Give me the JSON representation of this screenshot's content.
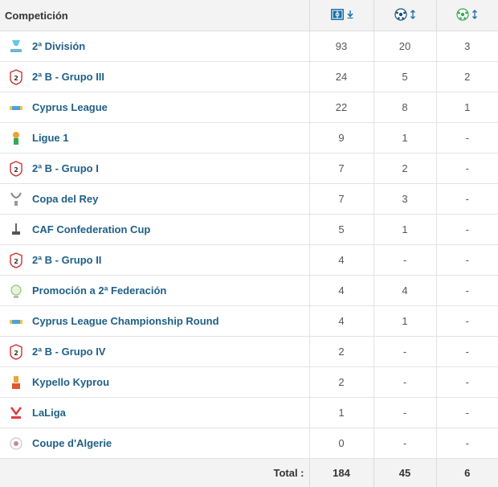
{
  "header": {
    "competition_label": "Competición",
    "col_icons": [
      {
        "icon": "lineup-sort-icon",
        "arrow": "sort-desc-arrow-icon"
      },
      {
        "icon": "ball-icon",
        "arrow": "sort-both-arrow-icon"
      },
      {
        "icon": "assist-ball-icon",
        "arrow": "sort-both-arrow-icon"
      }
    ]
  },
  "rows": [
    {
      "name": "2ª División",
      "logo": "laliga-hypermotion-logo",
      "a": "93",
      "b": "20",
      "c": "3"
    },
    {
      "name": "2ª B - Grupo III",
      "logo": "segunda-b-logo",
      "a": "24",
      "b": "5",
      "c": "2"
    },
    {
      "name": "Cyprus League",
      "logo": "cyprus-league-logo",
      "a": "22",
      "b": "8",
      "c": "1"
    },
    {
      "name": "Ligue 1",
      "logo": "ligue-1-logo",
      "a": "9",
      "b": "1",
      "c": "-"
    },
    {
      "name": "2ª B - Grupo I",
      "logo": "segunda-b-logo",
      "a": "7",
      "b": "2",
      "c": "-"
    },
    {
      "name": "Copa del Rey",
      "logo": "copa-del-rey-logo",
      "a": "7",
      "b": "3",
      "c": "-"
    },
    {
      "name": "CAF Confederation Cup",
      "logo": "caf-cup-logo",
      "a": "5",
      "b": "1",
      "c": "-"
    },
    {
      "name": "2ª B - Grupo II",
      "logo": "segunda-b-logo",
      "a": "4",
      "b": "-",
      "c": "-"
    },
    {
      "name": "Promoción a 2ª Federación",
      "logo": "federacion-logo",
      "a": "4",
      "b": "4",
      "c": "-"
    },
    {
      "name": "Cyprus League Championship Round",
      "logo": "cyprus-league-logo",
      "a": "4",
      "b": "1",
      "c": "-"
    },
    {
      "name": "2ª B - Grupo IV",
      "logo": "segunda-b-logo",
      "a": "2",
      "b": "-",
      "c": "-"
    },
    {
      "name": "Kypello Kyprou",
      "logo": "kypello-kyprou-logo",
      "a": "2",
      "b": "-",
      "c": "-"
    },
    {
      "name": "LaLiga",
      "logo": "laliga-logo",
      "a": "1",
      "b": "-",
      "c": "-"
    },
    {
      "name": "Coupe d'Algerie",
      "logo": "coupe-algerie-logo",
      "a": "0",
      "b": "-",
      "c": "-"
    }
  ],
  "footer": {
    "label": "Total :",
    "a": "184",
    "b": "45",
    "c": "6"
  },
  "colors": {
    "link": "#1f5f87",
    "header_bg": "#f3f3f3",
    "accent_blue": "#1a6fa8",
    "accent_green": "#3aa657"
  }
}
